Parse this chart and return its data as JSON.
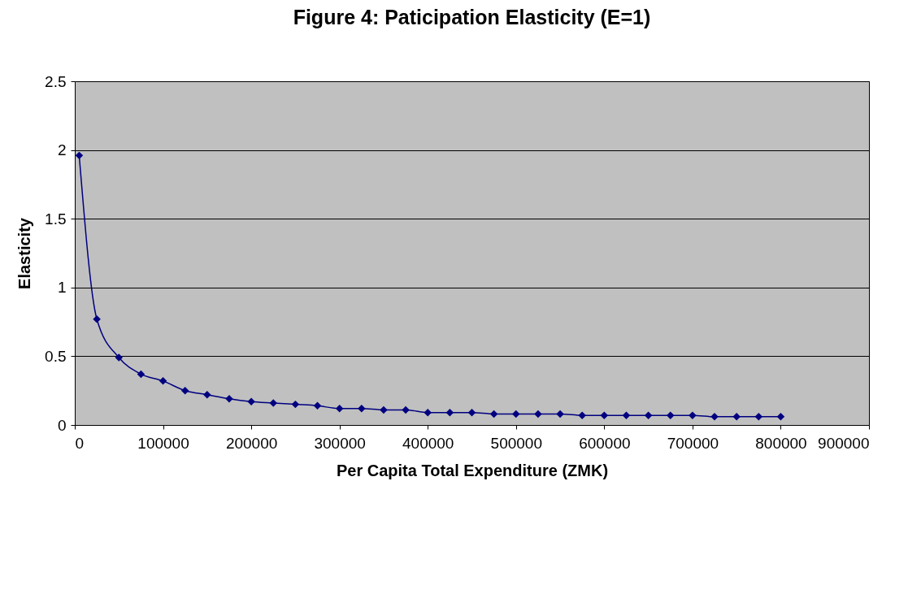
{
  "chart_data": {
    "type": "line",
    "title": "Figure 4: Paticipation Elasticity (E=1)",
    "xlabel": "Per Capita Total Expenditure (ZMK)",
    "ylabel": "Elasticity",
    "x": [
      5000,
      25000,
      50000,
      75000,
      100000,
      125000,
      150000,
      175000,
      200000,
      225000,
      250000,
      275000,
      300000,
      325000,
      350000,
      375000,
      400000,
      425000,
      450000,
      475000,
      500000,
      525000,
      550000,
      575000,
      600000,
      625000,
      650000,
      675000,
      700000,
      725000,
      750000,
      775000,
      800000
    ],
    "series": [
      {
        "color": "#000080",
        "values": [
          1.96,
          0.77,
          0.49,
          0.37,
          0.32,
          0.25,
          0.22,
          0.19,
          0.17,
          0.16,
          0.15,
          0.14,
          0.12,
          0.12,
          0.11,
          0.11,
          0.09,
          0.09,
          0.09,
          0.08,
          0.08,
          0.08,
          0.08,
          0.07,
          0.07,
          0.07,
          0.07,
          0.07,
          0.07,
          0.06,
          0.06,
          0.06,
          0.06
        ]
      }
    ],
    "xlim": [
      0,
      900000
    ],
    "xticks": [
      0,
      100000,
      200000,
      300000,
      400000,
      500000,
      600000,
      700000,
      800000,
      900000
    ],
    "ylim": [
      0,
      2.5
    ],
    "yticks": [
      0,
      0.5,
      1,
      1.5,
      2,
      2.5
    ],
    "grid": "y",
    "marker": "diamond",
    "line_style": "solid",
    "legend": false
  }
}
